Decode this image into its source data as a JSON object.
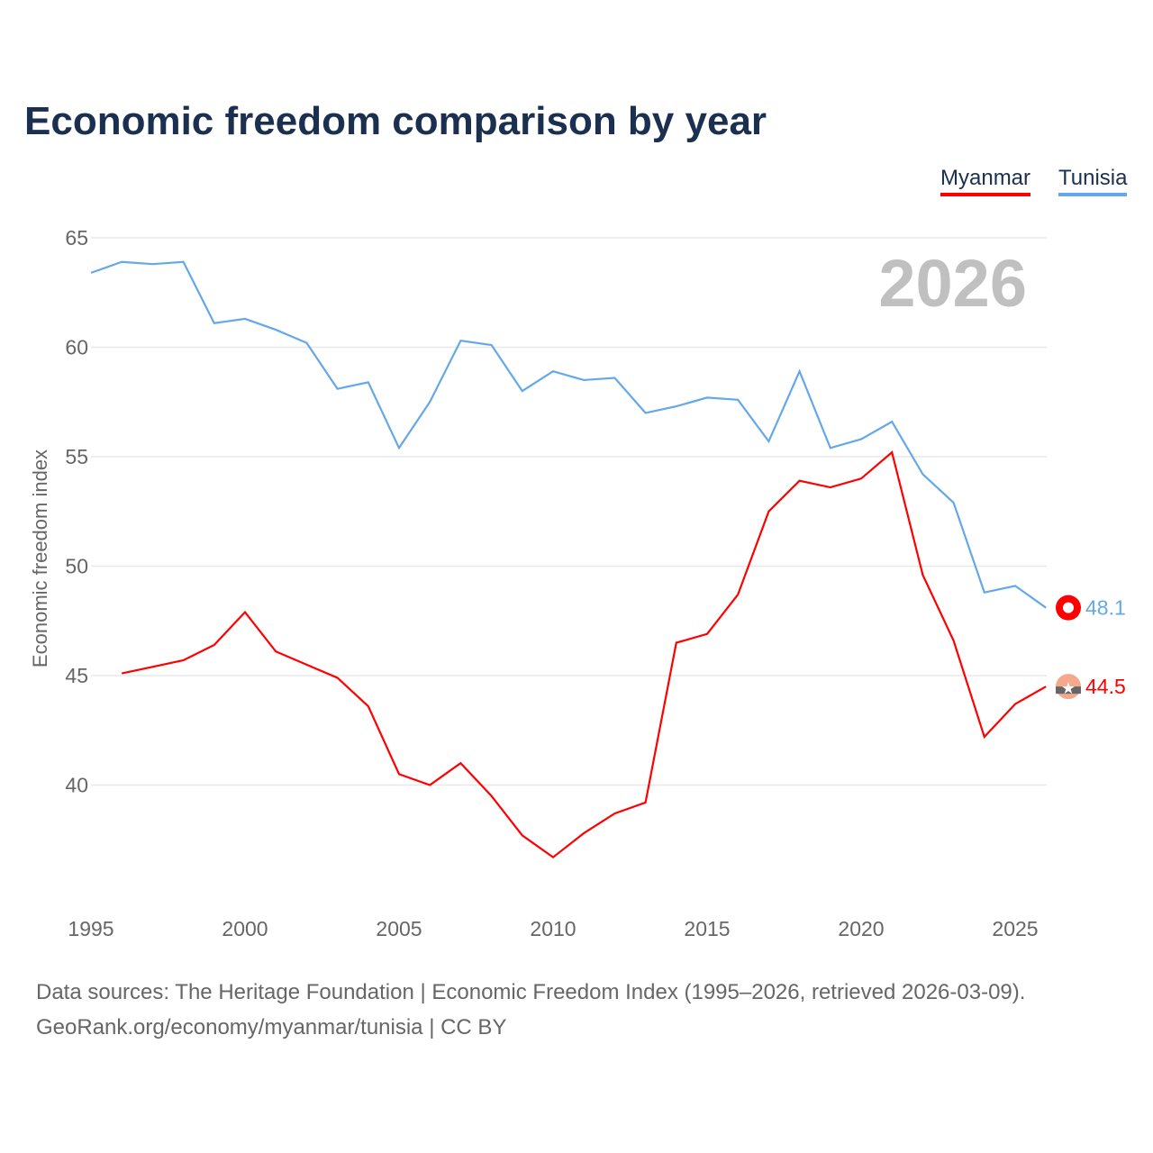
{
  "chart_data": {
    "type": "line",
    "title": "Economic freedom comparison by year",
    "ylabel": "Economic freedom index",
    "xlabel": "",
    "ylim": [
      35,
      66.5
    ],
    "xlim": [
      1995,
      2026
    ],
    "yticks": [
      40,
      45,
      50,
      55,
      60,
      65
    ],
    "xticks": [
      1995,
      2000,
      2005,
      2010,
      2015,
      2020,
      2025
    ],
    "year_label": "2026",
    "legend": "top-right",
    "series": [
      {
        "name": "Myanmar",
        "color": "#ff0000",
        "end_label": "44.5",
        "x": [
          1996,
          1997,
          1998,
          1999,
          2000,
          2001,
          2002,
          2003,
          2004,
          2005,
          2006,
          2007,
          2008,
          2009,
          2010,
          2011,
          2012,
          2013,
          2014,
          2015,
          2016,
          2017,
          2018,
          2019,
          2020,
          2021,
          2022,
          2023,
          2024,
          2025,
          2026
        ],
        "values": [
          45.1,
          45.4,
          45.7,
          46.4,
          47.9,
          46.1,
          45.5,
          44.9,
          43.6,
          40.5,
          40.0,
          41.0,
          39.5,
          37.7,
          36.7,
          37.8,
          38.7,
          39.2,
          46.5,
          46.9,
          48.7,
          52.5,
          53.9,
          53.6,
          54.0,
          55.2,
          49.6,
          46.6,
          42.2,
          43.7,
          44.5
        ]
      },
      {
        "name": "Tunisia",
        "color": "#64a8e8",
        "end_label": "48.1",
        "x": [
          1995,
          1996,
          1997,
          1998,
          1999,
          2000,
          2001,
          2002,
          2003,
          2004,
          2005,
          2006,
          2007,
          2008,
          2009,
          2010,
          2011,
          2012,
          2013,
          2014,
          2015,
          2016,
          2017,
          2018,
          2019,
          2020,
          2021,
          2022,
          2023,
          2024,
          2025,
          2026
        ],
        "values": [
          63.4,
          63.9,
          63.8,
          63.9,
          61.1,
          61.3,
          60.8,
          60.2,
          58.1,
          58.4,
          55.4,
          57.5,
          60.3,
          60.1,
          58.0,
          58.9,
          58.5,
          58.6,
          57.0,
          57.3,
          57.7,
          57.6,
          55.7,
          58.9,
          55.4,
          55.8,
          56.6,
          54.2,
          52.9,
          48.8,
          49.1,
          48.1
        ]
      }
    ]
  },
  "footer": {
    "line1": "Data sources: The Heritage Foundation | Economic Freedom Index (1995–2026, retrieved 2026-03-09).",
    "line2": "GeoRank.org/economy/myanmar/tunisia | CC BY"
  }
}
